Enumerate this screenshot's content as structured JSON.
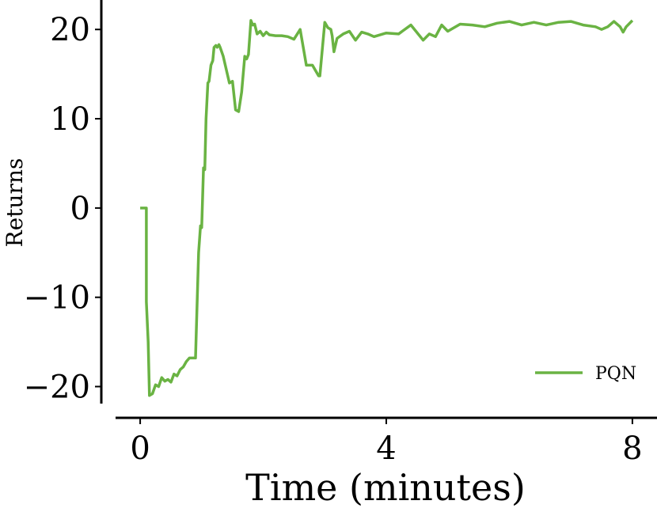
{
  "chart_data": {
    "type": "line",
    "xlabel": "Time (minutes)",
    "ylabel": "Returns",
    "xlim": [
      -0.4,
      8.4
    ],
    "ylim": [
      -23.5,
      23.3
    ],
    "xticks": [
      0,
      4,
      8
    ],
    "yticks": [
      -20,
      -10,
      0,
      10,
      20
    ],
    "xtick_labels": [
      "0",
      "4",
      "8"
    ],
    "ytick_labels": [
      "−20",
      "−10",
      "0",
      "10",
      "20"
    ],
    "grid": false,
    "legend_position": "lower-right",
    "series": [
      {
        "name": "PQN",
        "color": "#6ab343",
        "x": [
          0.0,
          0.1,
          0.1,
          0.13,
          0.15,
          0.2,
          0.25,
          0.3,
          0.35,
          0.4,
          0.45,
          0.5,
          0.55,
          0.6,
          0.65,
          0.7,
          0.75,
          0.8,
          0.85,
          0.9,
          0.95,
          0.98,
          1.0,
          1.03,
          1.05,
          1.07,
          1.1,
          1.12,
          1.15,
          1.18,
          1.2,
          1.23,
          1.25,
          1.28,
          1.3,
          1.35,
          1.4,
          1.45,
          1.5,
          1.55,
          1.6,
          1.65,
          1.7,
          1.73,
          1.76,
          1.8,
          1.83,
          1.86,
          1.9,
          1.95,
          2.0,
          2.05,
          2.1,
          2.2,
          2.3,
          2.4,
          2.5,
          2.6,
          2.7,
          2.8,
          2.9,
          2.92,
          3.0,
          3.05,
          3.1,
          3.12,
          3.15,
          3.2,
          3.3,
          3.4,
          3.5,
          3.6,
          3.7,
          3.8,
          4.0,
          4.2,
          4.4,
          4.6,
          4.7,
          4.8,
          4.9,
          5.0,
          5.2,
          5.4,
          5.6,
          5.8,
          6.0,
          6.2,
          6.4,
          6.6,
          6.8,
          7.0,
          7.2,
          7.4,
          7.5,
          7.6,
          7.7,
          7.8,
          7.85,
          7.9,
          8.0
        ],
        "y": [
          0.0,
          0.0,
          -10.5,
          -15,
          -21,
          -20.8,
          -19.8,
          -20.0,
          -19.0,
          -19.4,
          -19.2,
          -19.5,
          -18.6,
          -18.8,
          -18.1,
          -17.8,
          -17.2,
          -16.8,
          -16.8,
          -16.8,
          -5.0,
          -2.0,
          -2.2,
          4.5,
          4.3,
          10.0,
          14.0,
          14.2,
          16.0,
          16.5,
          18.0,
          18.2,
          18.0,
          18.3,
          18.0,
          17.0,
          15.5,
          14.0,
          14.2,
          11.0,
          10.8,
          13.0,
          17.0,
          16.7,
          17.2,
          21.0,
          20.5,
          20.6,
          19.5,
          19.8,
          19.3,
          19.7,
          19.4,
          19.3,
          19.3,
          19.2,
          18.9,
          20.0,
          16.0,
          16.0,
          14.8,
          14.8,
          20.8,
          20.2,
          20.0,
          19.3,
          17.5,
          19.0,
          19.5,
          19.8,
          18.8,
          19.7,
          19.5,
          19.2,
          19.6,
          19.5,
          20.5,
          18.8,
          19.5,
          19.2,
          20.5,
          19.8,
          20.6,
          20.5,
          20.3,
          20.7,
          20.9,
          20.5,
          20.8,
          20.5,
          20.8,
          20.9,
          20.5,
          20.3,
          20.0,
          20.3,
          20.9,
          20.3,
          19.7,
          20.3,
          21.0
        ]
      }
    ]
  }
}
